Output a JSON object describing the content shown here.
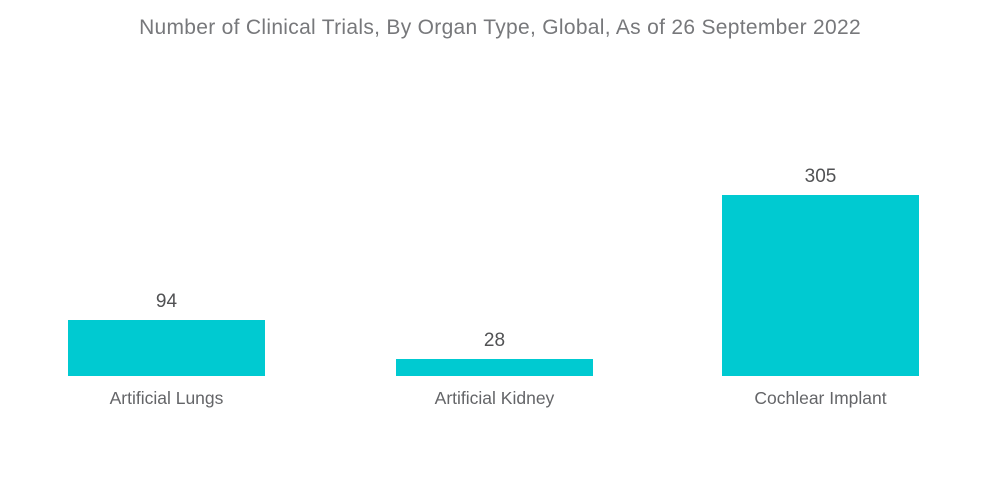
{
  "title": "Number of Clinical Trials, By Organ Type, Global, As of 26 September 2022",
  "colors": {
    "bar": "#00cad1",
    "title_text": "#77787b",
    "value_text": "#515254",
    "label_text": "#646568",
    "background": "#ffffff"
  },
  "chart_data": {
    "type": "bar",
    "categories": [
      "Artificial Lungs",
      "Artificial Kidney",
      "Cochlear Implant"
    ],
    "values": [
      94,
      28,
      305
    ],
    "data_labels": [
      "94",
      "28",
      "305"
    ],
    "title": "Number of Clinical Trials, By Organ Type, Global, As of 26 September 2022",
    "xlabel": "",
    "ylabel": "",
    "ylim": [
      0,
      305
    ],
    "grid": false,
    "legend": false,
    "axes_visible": false,
    "bar_orientation": "vertical"
  }
}
